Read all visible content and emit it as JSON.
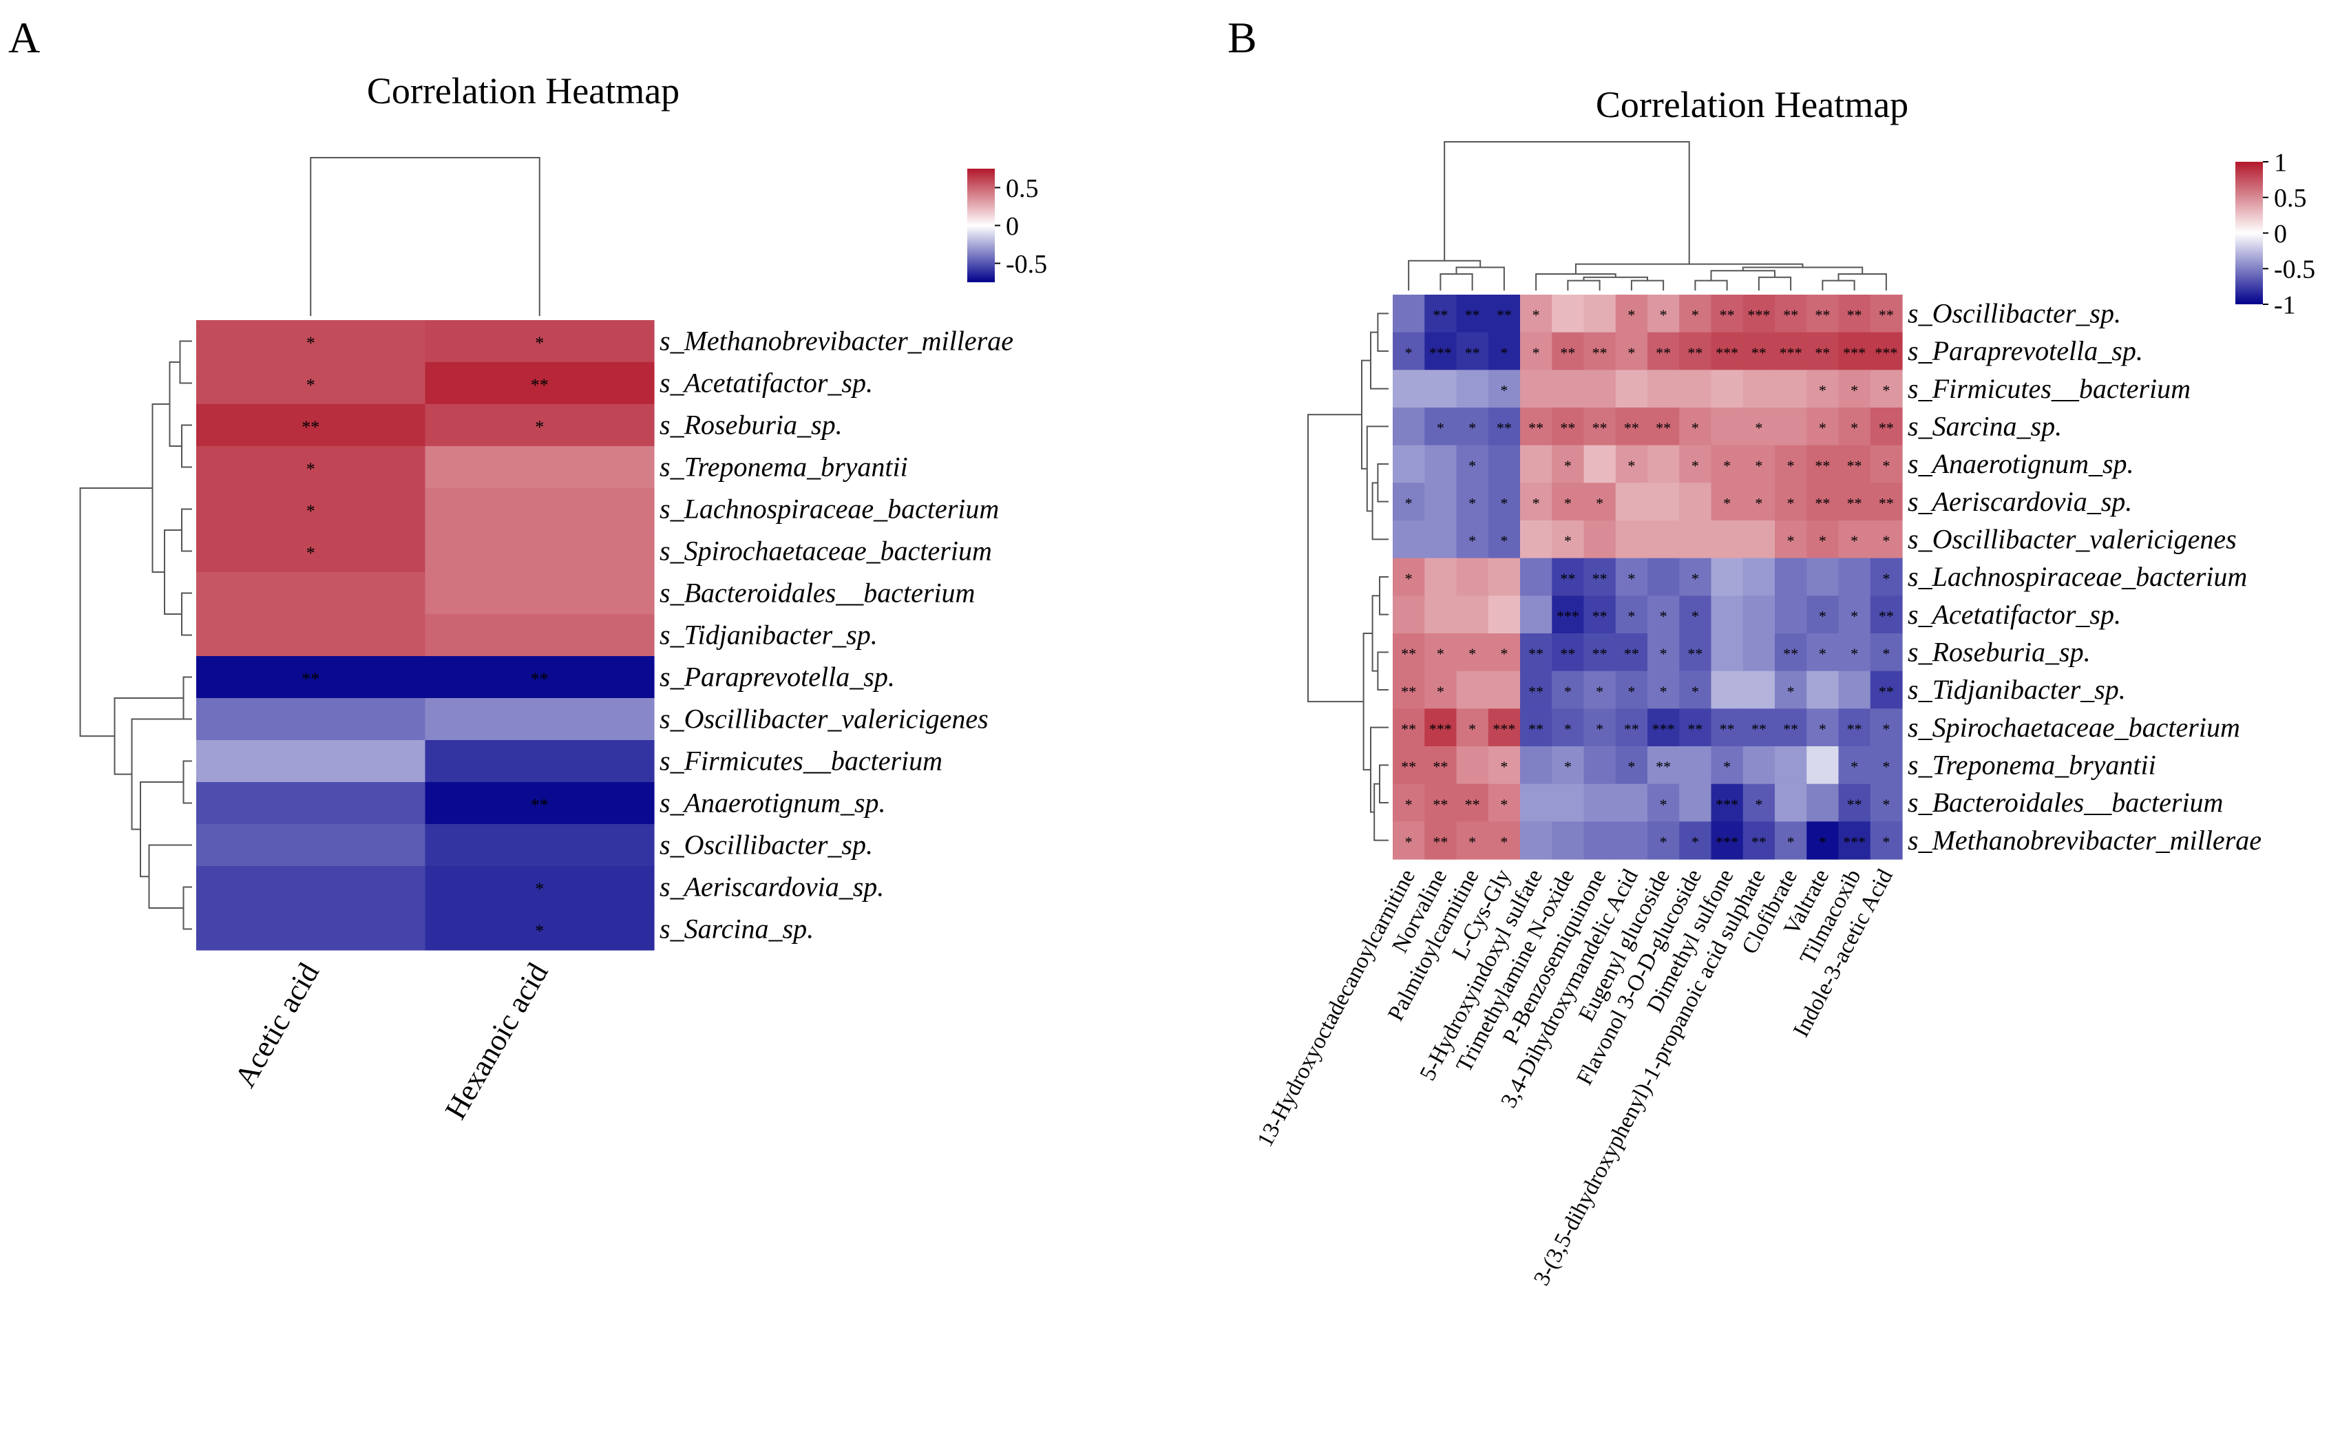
{
  "chart_data": [
    {
      "panel": "A",
      "type": "heatmap",
      "title": "Correlation Heatmap",
      "color_scale": {
        "low": "#00008B",
        "mid": "#FFFFFF",
        "high": "#B2182B",
        "range": [
          -0.75,
          0.75
        ],
        "ticks": [
          "0.5",
          "0",
          "-0.5"
        ],
        "tick_values": [
          0.5,
          0,
          -0.5
        ]
      },
      "columns": [
        "Acetic acid",
        "Hexanoic acid"
      ],
      "rows": [
        "s_Methanobrevibacter_millerae",
        "s_Acetatifactor_sp.",
        "s_Roseburia_sp.",
        "s_Treponema_bryantii",
        "s_Lachnospiraceae_bacterium",
        "s_Spirochaetaceae_bacterium",
        "s_Bacteroidales__bacterium",
        "s_Tidjanibacter_sp.",
        "s_Paraprevotella_sp.",
        "s_Oscillibacter_valericigenes",
        "s_Firmicutes__bacterium",
        "s_Anaerotignum_sp.",
        "s_Oscillibacter_sp.",
        "s_Aeriscardovia_sp.",
        "s_Sarcina_sp."
      ],
      "values": [
        [
          0.58,
          0.6
        ],
        [
          0.58,
          0.7
        ],
        [
          0.68,
          0.6
        ],
        [
          0.6,
          0.42
        ],
        [
          0.6,
          0.45
        ],
        [
          0.6,
          0.45
        ],
        [
          0.55,
          0.45
        ],
        [
          0.55,
          0.5
        ],
        [
          -0.72,
          -0.72
        ],
        [
          -0.42,
          -0.35
        ],
        [
          -0.28,
          -0.6
        ],
        [
          -0.52,
          -0.72
        ],
        [
          -0.48,
          -0.6
        ],
        [
          -0.55,
          -0.62
        ],
        [
          -0.55,
          -0.62
        ]
      ],
      "significance": [
        [
          "*",
          "*"
        ],
        [
          "*",
          "**"
        ],
        [
          "**",
          "*"
        ],
        [
          "*",
          ""
        ],
        [
          "*",
          ""
        ],
        [
          "*",
          ""
        ],
        [
          "",
          ""
        ],
        [
          "",
          ""
        ],
        [
          "**",
          "**"
        ],
        [
          "",
          ""
        ],
        [
          "",
          ""
        ],
        [
          "",
          "**"
        ],
        [
          "",
          ""
        ],
        [
          "",
          "*"
        ],
        [
          "",
          "*"
        ]
      ],
      "row_dendrogram": [
        [
          8,
          9,
          0.5
        ],
        [
          10,
          11,
          0.5
        ],
        [
          13,
          14,
          0.5
        ],
        [
          2,
          3,
          0.6
        ],
        [
          4,
          5,
          0.6
        ],
        [
          6,
          7,
          0.6
        ],
        [
          0,
          1,
          0.7
        ],
        [
          0,
          2,
          1.3
        ],
        [
          6,
          4,
          1.6
        ],
        [
          0,
          6,
          2.3
        ],
        [
          12,
          13,
          2.5
        ],
        [
          10,
          12,
          3.0
        ],
        [
          9,
          10,
          3.5
        ],
        [
          8,
          9,
          4.5
        ],
        [
          0,
          8,
          6.5
        ]
      ],
      "col_dendrogram": [
        [
          0,
          1,
          1
        ]
      ]
    },
    {
      "panel": "B",
      "type": "heatmap",
      "title": "Correlation Heatmap",
      "color_scale": {
        "low": "#00008B",
        "mid": "#FFFFFF",
        "high": "#B2182B",
        "range": [
          -1,
          1
        ],
        "ticks": [
          "1",
          "0.5",
          "0",
          "-0.5",
          "-1"
        ],
        "tick_values": [
          1,
          0.5,
          0,
          -0.5,
          -1
        ]
      },
      "columns": [
        "13-Hydroxyoctadecanoylcarnitine",
        "Norvaline",
        "Palmitoylcarnitine",
        "L-Cys-Gly",
        "5-Hydroxyindoxyl sulfate",
        "Trimethylamine N-oxide",
        "P-Benzosemiquinone",
        "3,4-Dihydroxymandelic Acid",
        "Eugenyl glucoside",
        "Flavonol 3-O-D-glucoside",
        "Dimethyl sulfone",
        "3-(3,5-dihydroxyphenyl)-1-propanoic acid sulphate",
        "Clofibrate",
        "Valtrate",
        "Tilmacoxib",
        "Indole-3-acetic Acid"
      ],
      "rows": [
        "s_Oscillibacter_sp.",
        "s_Paraprevotella_sp.",
        "s_Firmicutes__bacterium",
        "s_Sarcina_sp.",
        "s_Anaerotignum_sp.",
        "s_Aeriscardovia_sp.",
        "s_Oscillibacter_valericigenes",
        "s_Lachnospiraceae_bacterium",
        "s_Acetatifactor_sp.",
        "s_Roseburia_sp.",
        "s_Tidjanibacter_sp.",
        "s_Spirochaetaceae_bacterium",
        "s_Treponema_bryantii",
        "s_Bacteroidales__bacterium",
        "s_Methanobrevibacter_millerae"
      ],
      "values": [
        [
          -0.55,
          -0.8,
          -0.85,
          -0.85,
          0.45,
          0.3,
          0.35,
          0.55,
          0.45,
          0.6,
          0.7,
          0.75,
          0.7,
          0.65,
          0.7,
          0.65
        ],
        [
          -0.65,
          -0.85,
          -0.8,
          -0.85,
          0.5,
          0.65,
          0.6,
          0.55,
          0.7,
          0.75,
          0.8,
          0.8,
          0.8,
          0.8,
          0.85,
          0.85
        ],
        [
          -0.35,
          -0.35,
          -0.4,
          -0.45,
          0.45,
          0.45,
          0.45,
          0.35,
          0.4,
          0.4,
          0.35,
          0.4,
          0.4,
          0.45,
          0.5,
          0.45
        ],
        [
          -0.5,
          -0.6,
          -0.6,
          -0.65,
          0.6,
          0.65,
          0.6,
          0.65,
          0.65,
          0.55,
          0.5,
          0.5,
          0.5,
          0.55,
          0.6,
          0.7
        ],
        [
          -0.4,
          -0.45,
          -0.55,
          -0.6,
          0.4,
          0.5,
          0.3,
          0.45,
          0.4,
          0.5,
          0.55,
          0.55,
          0.6,
          0.65,
          0.65,
          0.6
        ],
        [
          -0.5,
          -0.45,
          -0.55,
          -0.6,
          0.45,
          0.55,
          0.55,
          0.35,
          0.35,
          0.4,
          0.55,
          0.55,
          0.6,
          0.65,
          0.65,
          0.65
        ],
        [
          -0.45,
          -0.45,
          -0.55,
          -0.6,
          0.35,
          0.4,
          0.5,
          0.4,
          0.4,
          0.4,
          0.4,
          0.4,
          0.55,
          0.6,
          0.55,
          0.55
        ],
        [
          0.55,
          0.4,
          0.45,
          0.4,
          -0.55,
          -0.75,
          -0.7,
          -0.55,
          -0.6,
          -0.55,
          -0.35,
          -0.4,
          -0.55,
          -0.5,
          -0.55,
          -0.65
        ],
        [
          0.5,
          0.4,
          0.4,
          0.3,
          -0.45,
          -0.85,
          -0.75,
          -0.6,
          -0.55,
          -0.65,
          -0.4,
          -0.45,
          -0.55,
          -0.6,
          -0.55,
          -0.7
        ],
        [
          0.6,
          0.55,
          0.55,
          0.55,
          -0.7,
          -0.75,
          -0.7,
          -0.7,
          -0.55,
          -0.65,
          -0.4,
          -0.45,
          -0.6,
          -0.55,
          -0.55,
          -0.6
        ],
        [
          0.6,
          0.55,
          0.45,
          0.45,
          -0.7,
          -0.6,
          -0.55,
          -0.6,
          -0.55,
          -0.6,
          -0.3,
          -0.3,
          -0.5,
          -0.35,
          -0.45,
          -0.75
        ],
        [
          0.65,
          0.85,
          0.6,
          0.8,
          -0.7,
          -0.65,
          -0.6,
          -0.65,
          -0.8,
          -0.75,
          -0.65,
          -0.65,
          -0.65,
          -0.55,
          -0.65,
          -0.6
        ],
        [
          0.65,
          0.65,
          0.5,
          0.45,
          -0.5,
          -0.45,
          -0.55,
          -0.6,
          -0.45,
          -0.45,
          -0.55,
          -0.45,
          -0.4,
          -0.15,
          -0.6,
          -0.6
        ],
        [
          0.6,
          0.65,
          0.65,
          0.55,
          -0.4,
          -0.4,
          -0.45,
          -0.45,
          -0.55,
          -0.45,
          -0.85,
          -0.65,
          -0.4,
          -0.5,
          -0.7,
          -0.6
        ],
        [
          0.55,
          0.65,
          0.6,
          0.6,
          -0.45,
          -0.5,
          -0.55,
          -0.55,
          -0.6,
          -0.7,
          -0.9,
          -0.75,
          -0.6,
          -0.95,
          -0.85,
          -0.65
        ]
      ],
      "significance": [
        [
          "",
          "**",
          "**",
          "**",
          "*",
          "",
          "",
          "*",
          "*",
          "*",
          "**",
          "***",
          "**",
          "**",
          "**",
          "**"
        ],
        [
          "*",
          "***",
          "**",
          "*",
          "*",
          "**",
          "**",
          "*",
          "**",
          "**",
          "***",
          "**",
          "***",
          "**",
          "***",
          "***"
        ],
        [
          "",
          "",
          "",
          "*",
          "",
          "",
          "",
          "",
          "",
          "",
          "",
          "",
          "",
          "*",
          "*",
          "*"
        ],
        [
          "",
          "*",
          "*",
          "**",
          "**",
          "**",
          "**",
          "**",
          "**",
          "*",
          "",
          "*",
          "",
          "*",
          "*",
          "**"
        ],
        [
          "",
          "",
          "*",
          "",
          "",
          "*",
          "",
          "*",
          "",
          "*",
          "*",
          "*",
          "*",
          "**",
          "**",
          "*"
        ],
        [
          "*",
          "",
          "*",
          "*",
          "*",
          "*",
          "*",
          "",
          "",
          "",
          "*",
          "*",
          "*",
          "**",
          "**",
          "**"
        ],
        [
          "",
          "",
          "*",
          "*",
          "",
          "*",
          "",
          "",
          "",
          "",
          "",
          "",
          "*",
          "*",
          "*",
          "*"
        ],
        [
          "*",
          "",
          "",
          "",
          "",
          "**",
          "**",
          "*",
          "",
          "*",
          "",
          "",
          "",
          "",
          "",
          "*"
        ],
        [
          "",
          "",
          "",
          "",
          "",
          "***",
          "**",
          "*",
          "*",
          "*",
          "",
          "",
          "",
          "*",
          "*",
          "**"
        ],
        [
          "**",
          "*",
          "*",
          "*",
          "**",
          "**",
          "**",
          "**",
          "*",
          "**",
          "",
          "",
          "**",
          "*",
          "*",
          "*"
        ],
        [
          "**",
          "*",
          "",
          "",
          "**",
          "*",
          "*",
          "*",
          "*",
          "*",
          "",
          "",
          "*",
          "",
          "",
          "**"
        ],
        [
          "**",
          "***",
          "*",
          "***",
          "**",
          "*",
          "*",
          "**",
          "***",
          "**",
          "**",
          "**",
          "**",
          "*",
          "**",
          "*"
        ],
        [
          "**",
          "**",
          "",
          "*",
          "",
          "*",
          "",
          "*",
          "**",
          "",
          "*",
          "",
          "",
          "",
          "*",
          "*"
        ],
        [
          "*",
          "**",
          "**",
          "*",
          "",
          "",
          "",
          "",
          "*",
          "",
          "***",
          "*",
          "",
          "",
          "**",
          "*"
        ],
        [
          "*",
          "**",
          "*",
          "*",
          "",
          "",
          "",
          "",
          "*",
          "*",
          "***",
          "**",
          "*",
          "*",
          "***",
          "*"
        ]
      ],
      "row_dendrogram": [
        [
          0,
          1,
          0.6
        ],
        [
          0,
          2,
          1.0
        ],
        [
          4,
          5,
          0.6
        ],
        [
          4,
          6,
          0.9
        ],
        [
          3,
          4,
          1.2
        ],
        [
          0,
          3,
          1.5
        ],
        [
          7,
          8,
          0.5
        ],
        [
          9,
          10,
          0.6
        ],
        [
          7,
          9,
          0.9
        ],
        [
          12,
          13,
          0.5
        ],
        [
          12,
          14,
          0.8
        ],
        [
          11,
          12,
          1.0
        ],
        [
          7,
          11,
          1.4
        ],
        [
          0,
          7,
          4.5
        ]
      ],
      "col_dendrogram": [
        [
          1,
          2,
          0.5
        ],
        [
          1,
          3,
          0.7
        ],
        [
          0,
          1,
          0.9
        ],
        [
          5,
          6,
          0.3
        ],
        [
          7,
          8,
          0.3
        ],
        [
          5,
          7,
          0.4
        ],
        [
          4,
          5,
          0.5
        ],
        [
          9,
          10,
          0.3
        ],
        [
          11,
          12,
          0.4
        ],
        [
          9,
          11,
          0.6
        ],
        [
          13,
          14,
          0.3
        ],
        [
          13,
          15,
          0.5
        ],
        [
          9,
          13,
          0.7
        ],
        [
          4,
          9,
          0.8
        ],
        [
          0,
          4,
          4.5
        ]
      ]
    }
  ],
  "panel_letters": [
    "A",
    "B"
  ]
}
